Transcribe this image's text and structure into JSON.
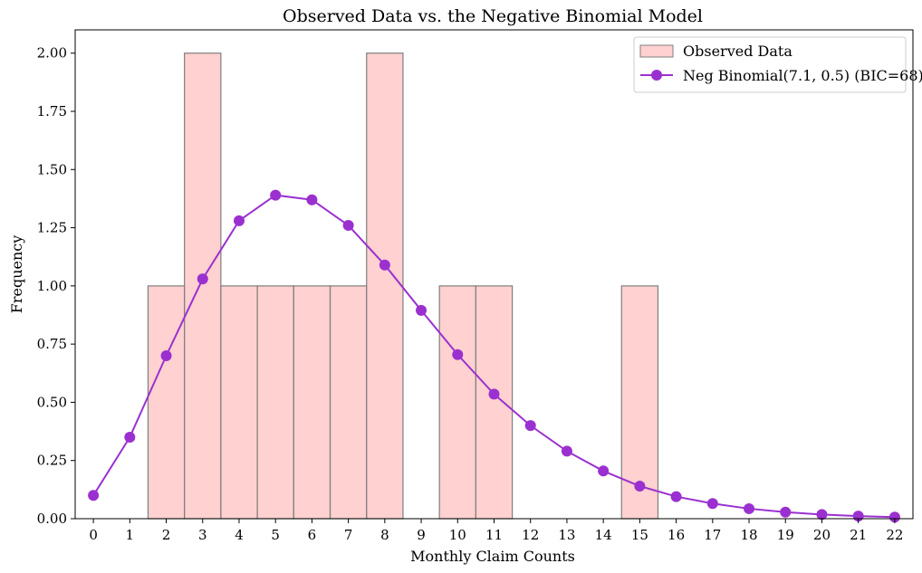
{
  "chart_data": {
    "type": "bar",
    "title": "Observed Data vs. the Negative Binomial Model",
    "xlabel": "Monthly Claim Counts",
    "ylabel": "Frequency",
    "xlim": [
      -0.5,
      22.5
    ],
    "ylim": [
      0,
      2.1
    ],
    "yticks": [
      0.0,
      0.25,
      0.5,
      0.75,
      1.0,
      1.25,
      1.5,
      1.75,
      2.0
    ],
    "ytick_labels": [
      "0.00",
      "0.25",
      "0.50",
      "0.75",
      "1.00",
      "1.25",
      "1.50",
      "1.75",
      "2.00"
    ],
    "xticks": [
      0,
      1,
      2,
      3,
      4,
      5,
      6,
      7,
      8,
      9,
      10,
      11,
      12,
      13,
      14,
      15,
      16,
      17,
      18,
      19,
      20,
      21,
      22
    ],
    "xtick_labels": [
      "0",
      "1",
      "2",
      "3",
      "4",
      "5",
      "6",
      "7",
      "8",
      "9",
      "10",
      "11",
      "12",
      "13",
      "14",
      "15",
      "16",
      "17",
      "18",
      "19",
      "20",
      "21",
      "22"
    ],
    "legend_position": "top-right",
    "series": [
      {
        "name": "Observed Data",
        "kind": "bar",
        "color": "#ffb3b0",
        "edge_color": "#7f7f7f",
        "x": [
          2,
          3,
          4,
          5,
          6,
          7,
          8,
          10,
          11,
          15
        ],
        "values": [
          1,
          2,
          1,
          1,
          1,
          1,
          2,
          1,
          1,
          1
        ]
      },
      {
        "name": "Neg Binomial(7.1, 0.5) (BIC=68)",
        "kind": "line",
        "color": "#9b30d0",
        "x": [
          0,
          1,
          2,
          3,
          4,
          5,
          6,
          7,
          8,
          9,
          10,
          11,
          12,
          13,
          14,
          15,
          16,
          17,
          18,
          19,
          20,
          21,
          22
        ],
        "values": [
          0.1,
          0.35,
          0.7,
          1.03,
          1.28,
          1.39,
          1.37,
          1.26,
          1.09,
          0.895,
          0.705,
          0.535,
          0.4,
          0.29,
          0.205,
          0.14,
          0.095,
          0.065,
          0.043,
          0.028,
          0.018,
          0.011,
          0.007
        ]
      }
    ]
  }
}
